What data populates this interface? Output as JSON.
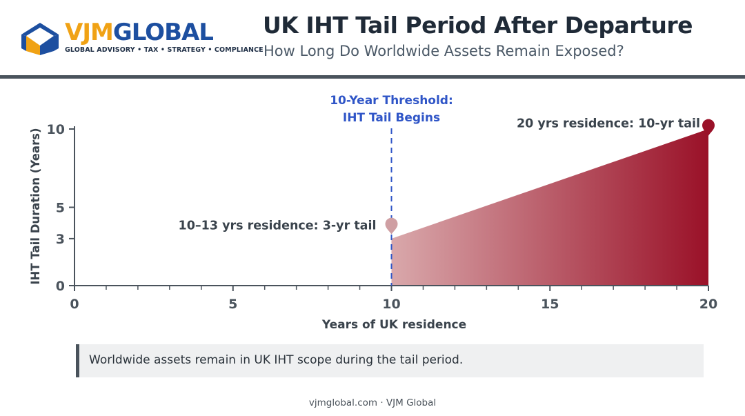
{
  "brand": {
    "name_part1": "VJM",
    "name_part2": "GLOBAL",
    "tagline": "GLOBAL ADVISORY • TAX • STRATEGY • COMPLIANCE",
    "colors": {
      "gold": "#f0a215",
      "blue": "#1d4fa0"
    }
  },
  "header": {
    "title": "UK IHT Tail Period After Departure",
    "subtitle": "How Long Do Worldwide Assets Remain Exposed?"
  },
  "chart_data": {
    "type": "area",
    "xlabel": "Years of UK residence",
    "ylabel": "IHT Tail Duration (Years)",
    "xlim": [
      0,
      20
    ],
    "ylim": [
      0,
      10
    ],
    "x_ticks": [
      0,
      5,
      10,
      15,
      20
    ],
    "y_ticks": [
      0,
      3,
      5,
      10
    ],
    "x": [
      10,
      20
    ],
    "y": [
      3,
      10
    ],
    "threshold": {
      "x": 10,
      "label_line1": "10-Year Threshold:",
      "label_line2": "IHT Tail Begins"
    },
    "annotations": [
      {
        "x": 10,
        "y": 4.2,
        "text": "10–13 yrs residence: 3-yr tail"
      },
      {
        "x": 20,
        "y": 10.5,
        "text": "20 yrs residence: 10-yr tail"
      }
    ],
    "grid": false,
    "colors": {
      "fill_light": "#d9a8ab",
      "fill_dark": "#9a1128",
      "threshold": "#2f55c7",
      "axis": "#4a535c"
    }
  },
  "note": {
    "text": "Worldwide assets remain in UK IHT scope during the tail period."
  },
  "footer": {
    "text": "vjmglobal.com · VJM Global"
  }
}
